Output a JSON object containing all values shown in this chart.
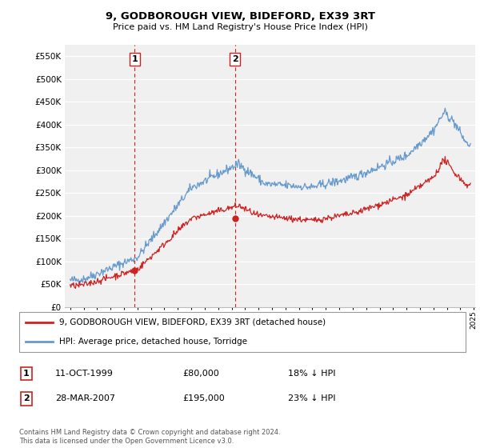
{
  "title": "9, GODBOROUGH VIEW, BIDEFORD, EX39 3RT",
  "subtitle": "Price paid vs. HM Land Registry's House Price Index (HPI)",
  "legend_entry1": "9, GODBOROUGH VIEW, BIDEFORD, EX39 3RT (detached house)",
  "legend_entry2": "HPI: Average price, detached house, Torridge",
  "sale1_date": "11-OCT-1999",
  "sale1_price": 80000,
  "sale1_label": "18% ↓ HPI",
  "sale2_date": "28-MAR-2007",
  "sale2_price": 195000,
  "sale2_label": "23% ↓ HPI",
  "footnote": "Contains HM Land Registry data © Crown copyright and database right 2024.\nThis data is licensed under the Open Government Licence v3.0.",
  "hpi_color": "#6699cc",
  "price_color": "#cc2222",
  "vline_color": "#cc2222",
  "background_chart": "#f0f0f0",
  "ylim": [
    0,
    575000
  ],
  "yticks": [
    0,
    50000,
    100000,
    150000,
    200000,
    250000,
    300000,
    350000,
    400000,
    450000,
    500000,
    550000
  ],
  "sale1_t": 1999.79,
  "sale2_t": 2007.24
}
